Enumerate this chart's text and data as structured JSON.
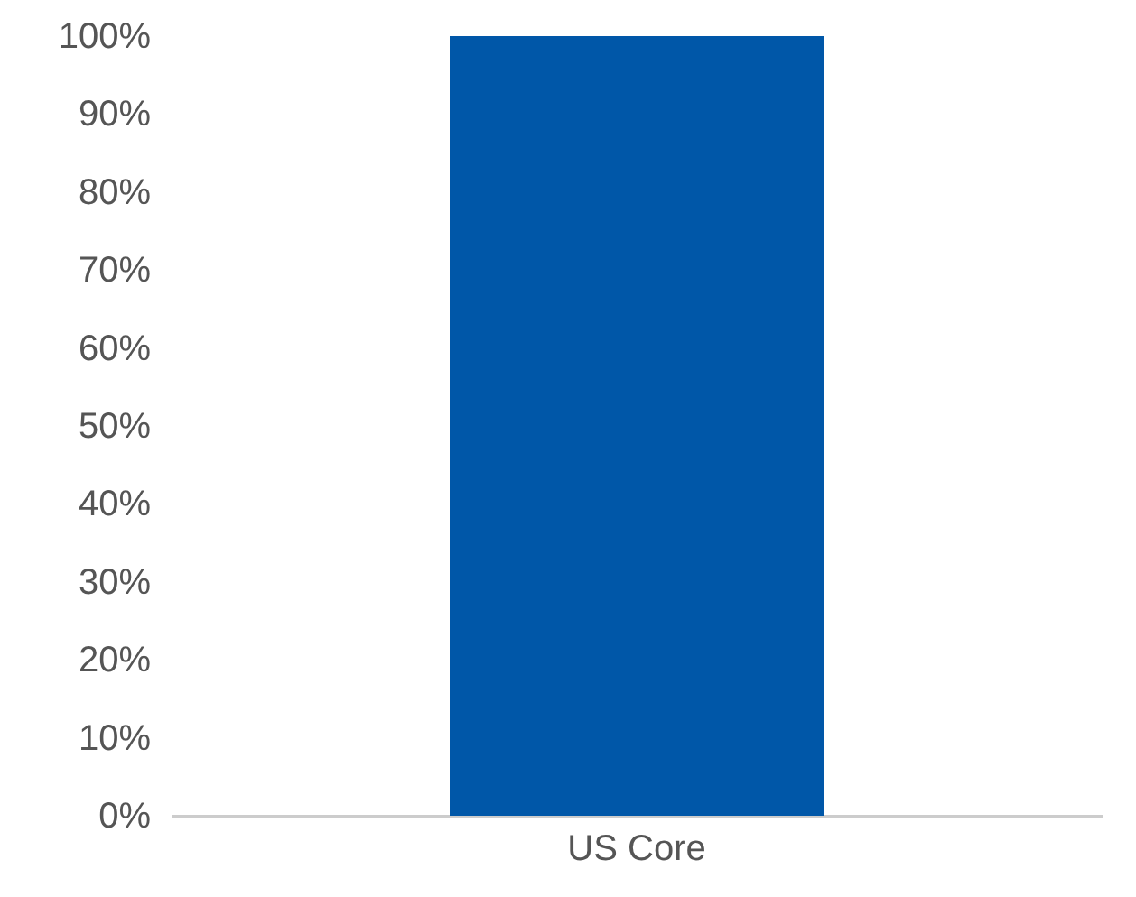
{
  "chart_data": {
    "type": "bar",
    "categories": [
      "US Core"
    ],
    "values": [
      100
    ],
    "color": "#0057a8",
    "ylim": [
      0,
      100
    ],
    "yticks": [
      {
        "value": 0,
        "label": "0%"
      },
      {
        "value": 10,
        "label": "10%"
      },
      {
        "value": 20,
        "label": "20%"
      },
      {
        "value": 30,
        "label": "30%"
      },
      {
        "value": 40,
        "label": "40%"
      },
      {
        "value": 50,
        "label": "50%"
      },
      {
        "value": 60,
        "label": "60%"
      },
      {
        "value": 70,
        "label": "70%"
      },
      {
        "value": 80,
        "label": "80%"
      },
      {
        "value": 90,
        "label": "90%"
      },
      {
        "value": 100,
        "label": "100%"
      }
    ],
    "grid": false
  }
}
